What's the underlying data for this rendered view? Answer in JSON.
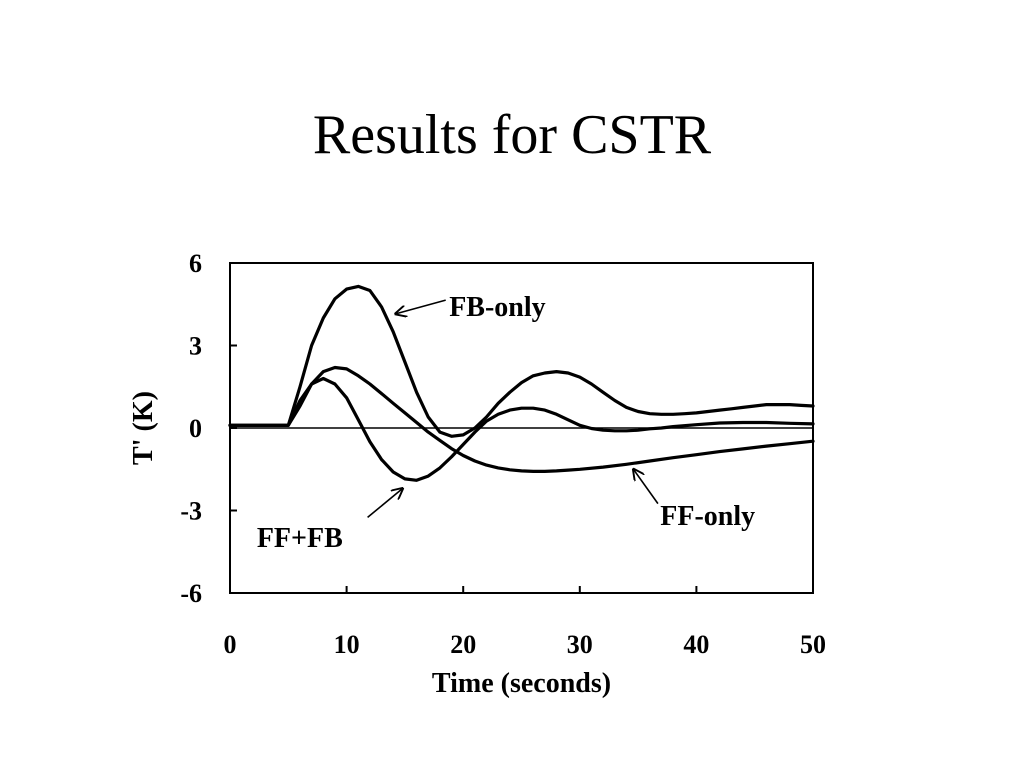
{
  "slide": {
    "title": "Results for CSTR"
  },
  "chart_data": {
    "type": "line",
    "xlabel": "Time (seconds)",
    "ylabel": "T' (K)",
    "xlim": [
      0,
      50
    ],
    "ylim": [
      -6,
      6
    ],
    "x_ticks": [
      0,
      10,
      20,
      30,
      40,
      50
    ],
    "y_ticks": [
      -6,
      -3,
      0,
      3,
      6
    ],
    "grid": false,
    "colors": {
      "line": "#000000",
      "axis": "#000000"
    },
    "series": [
      {
        "name": "FB-only",
        "x": [
          0,
          5,
          6,
          7,
          8,
          9,
          10,
          11,
          12,
          13,
          14,
          15,
          16,
          17,
          18,
          19,
          20,
          21,
          22,
          23,
          24,
          25,
          26,
          27,
          28,
          29,
          30,
          31,
          32,
          33,
          34,
          35,
          36,
          37,
          38,
          39,
          40,
          41,
          42,
          43,
          44,
          45,
          46,
          47,
          48,
          49,
          50
        ],
        "y": [
          0.1,
          0.1,
          1.5,
          3.0,
          4.0,
          4.7,
          5.05,
          5.15,
          5.0,
          4.4,
          3.5,
          2.4,
          1.3,
          0.4,
          -0.15,
          -0.3,
          -0.25,
          0.0,
          0.4,
          0.9,
          1.3,
          1.65,
          1.9,
          2.0,
          2.05,
          2.0,
          1.85,
          1.6,
          1.3,
          1.0,
          0.75,
          0.6,
          0.52,
          0.5,
          0.5,
          0.52,
          0.55,
          0.6,
          0.65,
          0.7,
          0.75,
          0.8,
          0.85,
          0.85,
          0.85,
          0.82,
          0.8
        ]
      },
      {
        "name": "FF-only",
        "x": [
          0,
          5,
          6,
          7,
          8,
          9,
          10,
          11,
          12,
          13,
          14,
          15,
          16,
          17,
          18,
          19,
          20,
          21,
          22,
          23,
          24,
          25,
          26,
          27,
          28,
          29,
          30,
          32,
          34,
          36,
          38,
          40,
          42,
          44,
          46,
          48,
          50
        ],
        "y": [
          0.1,
          0.1,
          0.8,
          1.6,
          2.05,
          2.2,
          2.15,
          1.9,
          1.6,
          1.25,
          0.9,
          0.55,
          0.2,
          -0.15,
          -0.45,
          -0.75,
          -1.0,
          -1.2,
          -1.35,
          -1.45,
          -1.52,
          -1.56,
          -1.58,
          -1.58,
          -1.56,
          -1.53,
          -1.5,
          -1.42,
          -1.32,
          -1.2,
          -1.08,
          -0.97,
          -0.86,
          -0.76,
          -0.66,
          -0.57,
          -0.48
        ]
      },
      {
        "name": "FF+FB",
        "x": [
          0,
          5,
          6,
          7,
          8,
          9,
          10,
          11,
          12,
          13,
          14,
          15,
          16,
          17,
          18,
          19,
          20,
          21,
          22,
          23,
          24,
          25,
          26,
          27,
          28,
          29,
          30,
          31,
          32,
          33,
          34,
          35,
          36,
          37,
          38,
          40,
          42,
          44,
          46,
          48,
          50
        ],
        "y": [
          0.1,
          0.1,
          1.0,
          1.6,
          1.8,
          1.6,
          1.1,
          0.3,
          -0.5,
          -1.15,
          -1.6,
          -1.85,
          -1.9,
          -1.75,
          -1.45,
          -1.05,
          -0.6,
          -0.15,
          0.25,
          0.5,
          0.65,
          0.72,
          0.72,
          0.65,
          0.5,
          0.3,
          0.1,
          -0.02,
          -0.08,
          -0.1,
          -0.1,
          -0.08,
          -0.03,
          0.0,
          0.05,
          0.12,
          0.18,
          0.2,
          0.2,
          0.17,
          0.15
        ]
      }
    ],
    "annotations": [
      {
        "text": "FB-only",
        "arrow_from": [
          18.5,
          4.65
        ],
        "arrow_to": [
          14.2,
          4.15
        ],
        "label_at": [
          18.8,
          4.4
        ],
        "anchor": "start"
      },
      {
        "text": "FF+FB",
        "arrow_from": [
          11.8,
          -3.25
        ],
        "arrow_to": [
          14.8,
          -2.2
        ],
        "label_at": [
          2.3,
          -4.0
        ],
        "anchor": "start"
      },
      {
        "text": "FF-only",
        "arrow_from": [
          36.7,
          -2.75
        ],
        "arrow_to": [
          34.6,
          -1.5
        ],
        "label_at": [
          36.9,
          -3.2
        ],
        "anchor": "start"
      }
    ]
  }
}
